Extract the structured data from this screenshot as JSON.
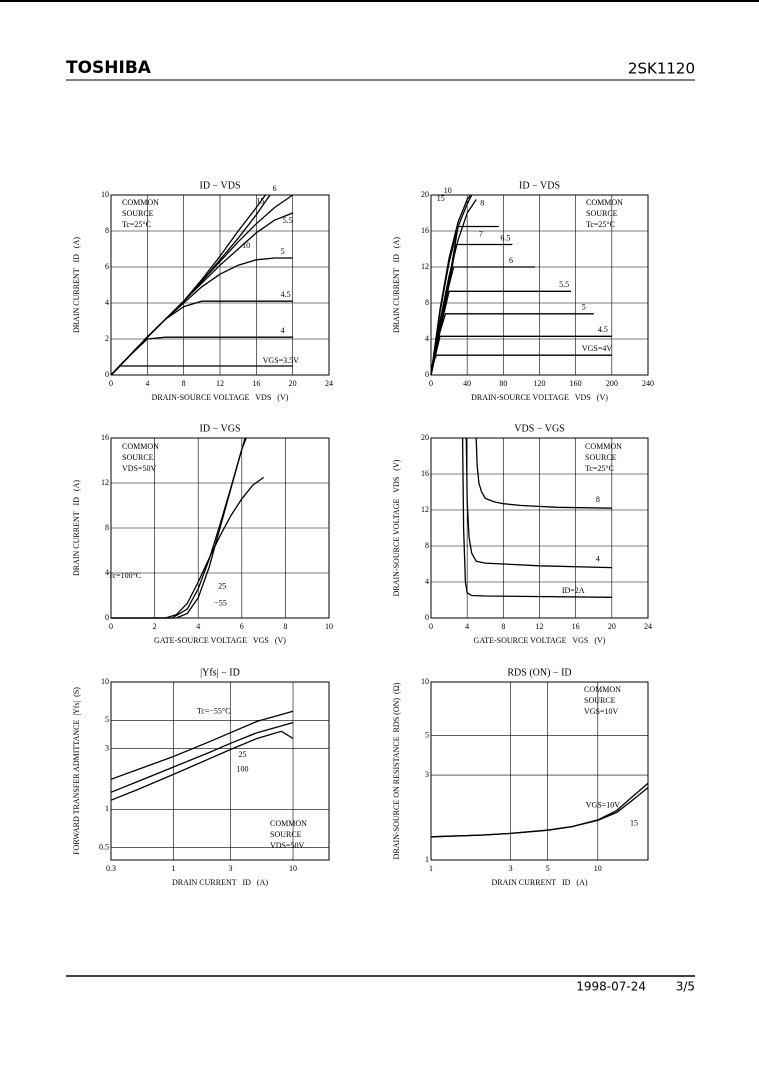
{
  "header": {
    "brand": "TOSHIBA",
    "part": "2SK1120"
  },
  "footer": {
    "date": "1998-07-24",
    "page": "3/5"
  },
  "chart_data": [
    {
      "type": "line",
      "title": "ID − VDS",
      "xlabel": "DRAIN-SOURCE VOLTAGE   VDS   (V)",
      "ylabel": "DRAIN CURRENT   ID   (A)",
      "notes": [
        "COMMON",
        "SOURCE",
        "Tc=25°C"
      ],
      "xlim": [
        0,
        24
      ],
      "ylim": [
        0,
        10
      ],
      "xticks": [
        0,
        4,
        8,
        12,
        16,
        20,
        24
      ],
      "yticks": [
        0,
        2,
        4,
        6,
        8,
        10
      ],
      "grid": true,
      "color": "#000000",
      "series": [
        {
          "name": "15",
          "x": [
            0,
            2,
            4,
            6,
            8,
            10,
            12,
            14,
            16,
            17
          ],
          "values": [
            0,
            1.05,
            2.1,
            3.1,
            4.1,
            5.3,
            6.6,
            8,
            9.3,
            10
          ]
        },
        {
          "name": "10",
          "x": [
            0,
            2,
            4,
            6,
            8,
            10,
            12,
            14,
            16,
            17.5
          ],
          "values": [
            0,
            1.05,
            2.1,
            3.1,
            4.1,
            5.2,
            6.4,
            7.6,
            8.9,
            10
          ]
        },
        {
          "name": "6",
          "x": [
            0,
            2,
            4,
            6,
            8,
            10,
            12,
            14,
            16,
            18,
            20
          ],
          "values": [
            0,
            1.05,
            2.1,
            3.1,
            4.1,
            5.2,
            6.3,
            7.4,
            8.4,
            9.3,
            10
          ]
        },
        {
          "name": "5.5",
          "x": [
            0,
            2,
            4,
            6,
            8,
            10,
            12,
            14,
            16,
            18,
            20
          ],
          "values": [
            0,
            1.05,
            2.1,
            3.1,
            4.1,
            5.1,
            6.1,
            7,
            7.9,
            8.6,
            9
          ]
        },
        {
          "name": "5",
          "x": [
            0,
            2,
            4,
            6,
            8,
            10,
            12,
            14,
            16,
            18,
            20
          ],
          "values": [
            0,
            1.05,
            2.1,
            3.1,
            4,
            4.9,
            5.6,
            6.1,
            6.4,
            6.5,
            6.5
          ]
        },
        {
          "name": "4.5",
          "x": [
            0,
            2,
            4,
            6,
            8,
            10,
            12,
            14,
            16,
            18,
            20
          ],
          "values": [
            0,
            1.05,
            2.1,
            3.1,
            3.8,
            4.1,
            4.1,
            4.1,
            4.1,
            4.1,
            4.1
          ]
        },
        {
          "name": "4",
          "x": [
            0,
            2,
            4,
            6,
            8,
            10,
            12,
            14,
            16,
            18,
            20
          ],
          "values": [
            0,
            1.05,
            2,
            2.1,
            2.1,
            2.1,
            2.1,
            2.1,
            2.1,
            2.1,
            2.1
          ]
        },
        {
          "name": "VGS=3.5V",
          "x": [
            0,
            1,
            2,
            4,
            8,
            12,
            16,
            20
          ],
          "values": [
            0,
            0.5,
            0.5,
            0.5,
            0.5,
            0.5,
            0.5,
            0.5
          ]
        }
      ]
    },
    {
      "type": "line",
      "title": "ID − VDS",
      "xlabel": "DRAIN-SOURCE VOLTAGE   VDS   (V)",
      "ylabel": "DRAIN CURRENT   ID   (A)",
      "notes": [
        "COMMON",
        "SOURCE",
        "Tc=25°C"
      ],
      "xlim": [
        0,
        240
      ],
      "ylim": [
        0,
        20
      ],
      "xticks": [
        0,
        40,
        80,
        120,
        160,
        200,
        240
      ],
      "yticks": [
        0,
        4,
        8,
        12,
        16,
        20
      ],
      "grid": true,
      "color": "#000000",
      "series": [
        {
          "name": "10",
          "x": [
            0,
            5,
            10,
            20,
            30,
            40,
            45
          ],
          "values": [
            0,
            3.5,
            7,
            12.5,
            16.5,
            19,
            20
          ]
        },
        {
          "name": "15",
          "x": [
            0,
            5,
            10,
            20,
            30,
            40,
            44
          ],
          "values": [
            0,
            3.7,
            7.3,
            13,
            17,
            19.5,
            20
          ]
        },
        {
          "name": "8",
          "x": [
            0,
            5,
            10,
            20,
            30,
            40,
            50
          ],
          "values": [
            0,
            3,
            6,
            11,
            15,
            18,
            19.5
          ]
        },
        {
          "name": "7",
          "x": [
            0,
            5,
            10,
            20,
            30,
            75
          ],
          "values": [
            0,
            2.8,
            5.6,
            10.5,
            16.5,
            16.5
          ]
        },
        {
          "name": "6.5",
          "x": [
            0,
            5,
            10,
            20,
            28,
            90
          ],
          "values": [
            0,
            2.7,
            5.4,
            10.2,
            14.5,
            14.5
          ]
        },
        {
          "name": "6",
          "x": [
            0,
            5,
            10,
            20,
            25,
            115
          ],
          "values": [
            0,
            2.6,
            5.2,
            10,
            12,
            12
          ]
        },
        {
          "name": "5.5",
          "x": [
            0,
            5,
            10,
            20,
            155
          ],
          "values": [
            0,
            2.5,
            5,
            9.3,
            9.3
          ]
        },
        {
          "name": "5",
          "x": [
            0,
            5,
            10,
            16,
            180
          ],
          "values": [
            0,
            2.4,
            4.8,
            6.8,
            6.8
          ]
        },
        {
          "name": "4.5",
          "x": [
            0,
            5,
            10,
            200
          ],
          "values": [
            0,
            2.2,
            4.3,
            4.3
          ]
        },
        {
          "name": "VGS=4V",
          "x": [
            0,
            3,
            6,
            200
          ],
          "values": [
            0,
            1.5,
            2.2,
            2.2
          ]
        }
      ]
    },
    {
      "type": "line",
      "title": "ID − VGS",
      "xlabel": "GATE-SOURCE VOLTAGE   VGS   (V)",
      "ylabel": "DRAIN CURRENT   ID   (A)",
      "notes": [
        "COMMON",
        "SOURCE",
        "VDS=50V"
      ],
      "xlim": [
        0,
        10
      ],
      "ylim": [
        0,
        16
      ],
      "xticks": [
        0,
        2,
        4,
        6,
        8,
        10
      ],
      "yticks": [
        0,
        4,
        8,
        12,
        16
      ],
      "grid": true,
      "color": "#000000",
      "series": [
        {
          "name": "Tc=100°C",
          "x": [
            0,
            2.5,
            3,
            3.5,
            4,
            4.5,
            5,
            5.5,
            6,
            6.5,
            7
          ],
          "values": [
            0,
            0,
            0.3,
            1.3,
            3.2,
            5.3,
            7.3,
            9.1,
            10.6,
            11.8,
            12.5
          ]
        },
        {
          "name": "25",
          "x": [
            0,
            2.8,
            3.5,
            4,
            4.5,
            5,
            5.5,
            6,
            6.15
          ],
          "values": [
            0,
            0,
            0.8,
            2.6,
            5.2,
            8.3,
            11.6,
            15,
            16
          ]
        },
        {
          "name": "−55",
          "x": [
            0,
            3,
            3.5,
            4,
            4.5,
            5,
            5.5,
            6,
            6.2
          ],
          "values": [
            0,
            0,
            0.4,
            1.8,
            4.5,
            8,
            11.5,
            15,
            16
          ]
        }
      ]
    },
    {
      "type": "line",
      "title": "VDS − VGS",
      "xlabel": "GATE-SOURCE VOLTAGE   VGS   (V)",
      "ylabel": "DRAIN-SOURCE VOLTAGE   VDS   (V)",
      "notes": [
        "COMMON",
        "SOURCE",
        "Tc=25°C"
      ],
      "xlim": [
        0,
        24
      ],
      "ylim": [
        0,
        20
      ],
      "xticks": [
        0,
        4,
        8,
        12,
        16,
        20,
        24
      ],
      "yticks": [
        0,
        4,
        8,
        12,
        16,
        20
      ],
      "grid": true,
      "color": "#000000",
      "series": [
        {
          "name": "8",
          "x": [
            5,
            5.1,
            5.3,
            5.6,
            6,
            7,
            8,
            10,
            14,
            20
          ],
          "values": [
            20,
            17,
            15,
            14,
            13.3,
            12.9,
            12.7,
            12.5,
            12.3,
            12.2
          ]
        },
        {
          "name": "4",
          "x": [
            3.9,
            4,
            4.2,
            4.5,
            5,
            6,
            8,
            12,
            20
          ],
          "values": [
            20,
            13,
            9,
            7.2,
            6.3,
            6.1,
            6,
            5.8,
            5.6
          ]
        },
        {
          "name": "ID=2A",
          "x": [
            3.5,
            3.6,
            3.8,
            4,
            4.5,
            6,
            10,
            20
          ],
          "values": [
            20,
            10,
            4,
            2.8,
            2.5,
            2.45,
            2.4,
            2.3
          ]
        }
      ]
    },
    {
      "type": "line",
      "title": "|Yfs| − ID",
      "xlabel": "DRAIN CURRENT   ID   (A)",
      "ylabel": "FORWARD TRANSFER ADMITTANCE  |Yfs|  (S)",
      "notes": [
        "COMMON",
        "SOURCE",
        "VDS=50V"
      ],
      "xscale": "log",
      "yscale": "log",
      "xlim": [
        0.3,
        20
      ],
      "ylim": [
        0.4,
        10
      ],
      "xticks": [
        0.3,
        1,
        3,
        10
      ],
      "yticks": [
        0.5,
        1,
        3,
        5,
        10
      ],
      "grid": true,
      "color": "#000000",
      "series": [
        {
          "name": "Tc=−55°C",
          "x": [
            0.3,
            0.5,
            1,
            2,
            3,
            5,
            10
          ],
          "values": [
            1.72,
            2.05,
            2.6,
            3.4,
            4,
            4.9,
            5.9
          ]
        },
        {
          "name": "25",
          "x": [
            0.3,
            0.5,
            1,
            2,
            3,
            5,
            10
          ],
          "values": [
            1.36,
            1.65,
            2.15,
            2.8,
            3.3,
            4,
            4.8
          ]
        },
        {
          "name": "100",
          "x": [
            0.3,
            0.5,
            1,
            2,
            3,
            5,
            8,
            10
          ],
          "values": [
            1.18,
            1.43,
            1.88,
            2.5,
            2.95,
            3.6,
            4.1,
            3.6
          ]
        }
      ]
    },
    {
      "type": "line",
      "title": "RDS (ON) − ID",
      "xlabel": "DRAIN CURRENT   ID   (A)",
      "ylabel": "DRAIN-SOURCE ON RESISTANCE  RDS (ON)  (Ω)",
      "notes": [
        "COMMON",
        "SOURCE",
        "VGS=10V"
      ],
      "xscale": "log",
      "yscale": "log",
      "xlim": [
        1,
        20
      ],
      "ylim": [
        1,
        10
      ],
      "xticks": [
        1,
        3,
        5,
        10
      ],
      "yticks": [
        1,
        3,
        5,
        10
      ],
      "grid": true,
      "color": "#000000",
      "series": [
        {
          "name": "VGS=10V",
          "x": [
            1,
            2,
            3,
            5,
            7,
            10,
            13,
            16,
            20
          ],
          "values": [
            1.35,
            1.38,
            1.41,
            1.47,
            1.54,
            1.68,
            1.9,
            2.25,
            2.7
          ]
        },
        {
          "name": "15",
          "x": [
            1,
            2,
            3,
            5,
            7,
            10,
            13,
            16,
            20
          ],
          "values": [
            1.35,
            1.38,
            1.41,
            1.47,
            1.54,
            1.67,
            1.85,
            2.15,
            2.55
          ]
        }
      ]
    }
  ]
}
